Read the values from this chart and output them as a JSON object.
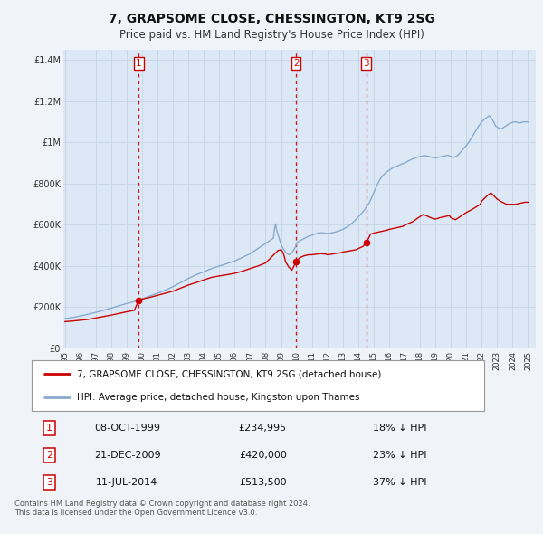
{
  "title": "7, GRAPSOME CLOSE, CHESSINGTON, KT9 2SG",
  "subtitle": "Price paid vs. HM Land Registry's House Price Index (HPI)",
  "background_color": "#f0f4f8",
  "plot_bg_color": "#dce8f5",
  "grid_color": "#c8d8e8",
  "red_line_color": "#cc0000",
  "blue_line_color": "#88aacc",
  "marker_color": "#cc0000",
  "vline_color": "#cc0000",
  "legend1": "7, GRAPSOME CLOSE, CHESSINGTON, KT9 2SG (detached house)",
  "legend2": "HPI: Average price, detached house, Kingston upon Thames",
  "transactions": [
    {
      "num": 1,
      "date": "08-OCT-1999",
      "price": "£234,995",
      "hpi": "18% ↓ HPI",
      "year": 1999.78
    },
    {
      "num": 2,
      "date": "21-DEC-2009",
      "price": "£420,000",
      "hpi": "23% ↓ HPI",
      "year": 2009.97
    },
    {
      "num": 3,
      "date": "11-JUL-2014",
      "price": "£513,500",
      "hpi": "37% ↓ HPI",
      "year": 2014.53
    }
  ],
  "transaction_values": [
    234995,
    420000,
    513500
  ],
  "ylim": [
    0,
    1450000
  ],
  "yticks": [
    0,
    200000,
    400000,
    600000,
    800000,
    1000000,
    1200000,
    1400000
  ],
  "ytick_labels": [
    "£0",
    "£200K",
    "£400K",
    "£600K",
    "£800K",
    "£1M",
    "£1.2M",
    "£1.4M"
  ],
  "xlim_start": 1994.9,
  "xlim_end": 2025.5,
  "xticks": [
    1995,
    1996,
    1997,
    1998,
    1999,
    2000,
    2001,
    2002,
    2003,
    2004,
    2005,
    2006,
    2007,
    2008,
    2009,
    2010,
    2011,
    2012,
    2013,
    2014,
    2015,
    2016,
    2017,
    2018,
    2019,
    2020,
    2021,
    2022,
    2023,
    2024,
    2025
  ],
  "footer": "Contains HM Land Registry data © Crown copyright and database right 2024.\nThis data is licensed under the Open Government Licence v3.0."
}
